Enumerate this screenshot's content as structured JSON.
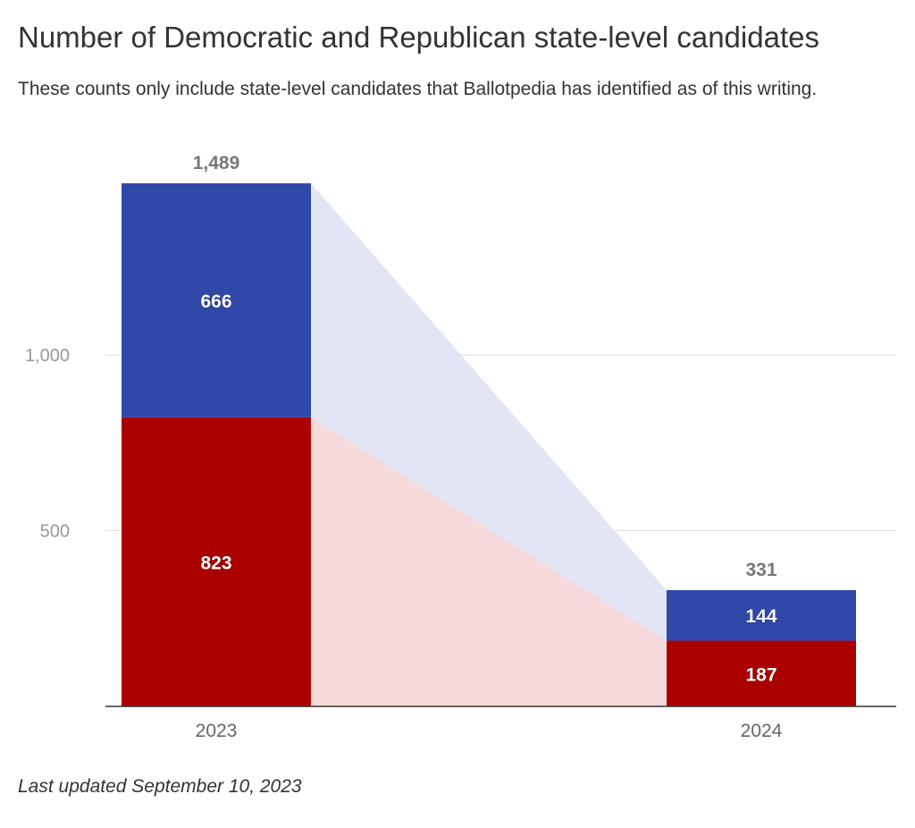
{
  "chart_data": {
    "type": "bar",
    "stacked": true,
    "title": "Number of Democratic and Republican state-level candidates",
    "subtitle": "These counts only include state-level candidates that Ballotpedia has identified as of this writing.",
    "footer": "Last updated September 10, 2023",
    "categories": [
      "2023",
      "2024"
    ],
    "series": [
      {
        "key": "republican",
        "values": [
          823,
          187
        ],
        "color": "#AA0000",
        "band_color": "#F6D9DA"
      },
      {
        "key": "democratic",
        "values": [
          666,
          144
        ],
        "color": "#3048A8",
        "band_color": "#E1E5F4"
      }
    ],
    "totals": [
      "1,489",
      "331"
    ],
    "value_labels": [
      [
        "823",
        "187"
      ],
      [
        "666",
        "144"
      ]
    ],
    "yticks": [
      {
        "value": 500,
        "label": "500"
      },
      {
        "value": 1000,
        "label": "1,000"
      }
    ],
    "ylim": [
      0,
      1489
    ],
    "grid": true,
    "legend": "none"
  }
}
